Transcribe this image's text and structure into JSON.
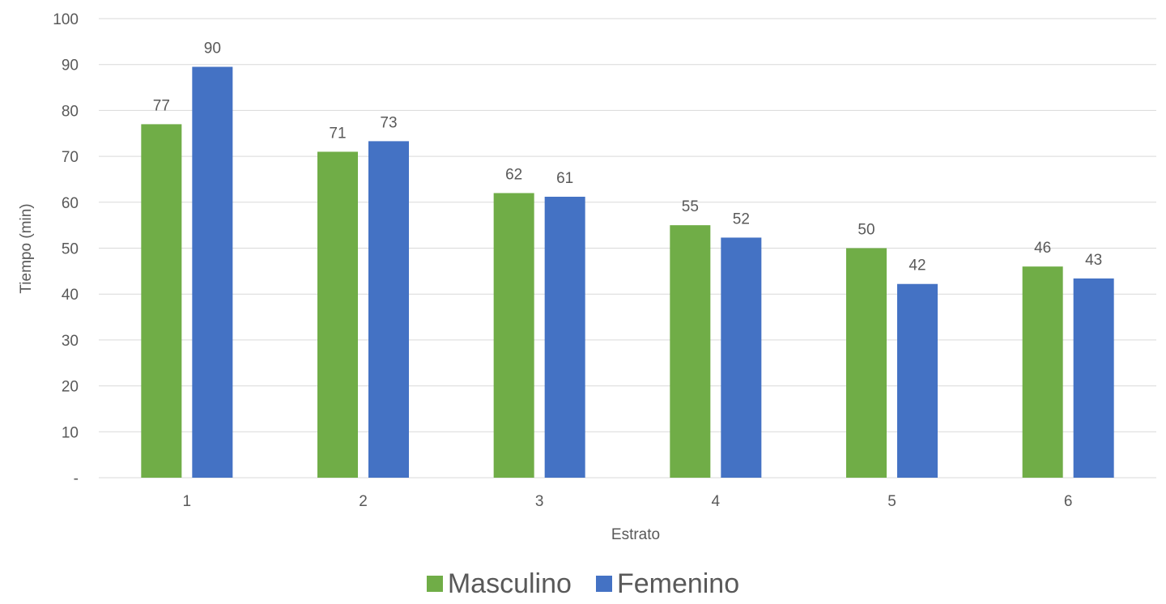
{
  "chart_data": {
    "type": "bar",
    "categories": [
      "1",
      "2",
      "3",
      "4",
      "5",
      "6"
    ],
    "series": [
      {
        "name": "Masculino",
        "color": "#70AD47",
        "values": [
          77,
          71,
          62,
          55,
          50,
          46
        ],
        "labels": [
          "77",
          "71",
          "62",
          "55",
          "50",
          "46"
        ]
      },
      {
        "name": "Femenino",
        "color": "#4472C4",
        "values": [
          89.5,
          73.3,
          61.2,
          52.3,
          42.2,
          43.4
        ],
        "labels": [
          "90",
          "73",
          "61",
          "52",
          "42",
          "43"
        ]
      }
    ],
    "xlabel": "Estrato",
    "ylabel": "Tiempo (min)",
    "ylim": [
      0,
      100
    ],
    "yticks": [
      0,
      10,
      20,
      30,
      40,
      50,
      60,
      70,
      80,
      90,
      100
    ],
    "ytick_labels": [
      "-",
      "10",
      "20",
      "30",
      "40",
      "50",
      "60",
      "70",
      "80",
      "90",
      "100"
    ],
    "grid": true,
    "legend_position": "bottom"
  }
}
